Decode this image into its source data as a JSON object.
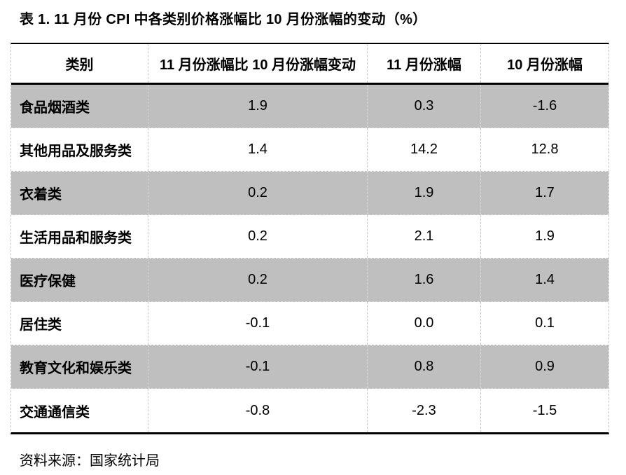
{
  "title": "表 1. 11 月份 CPI 中各类别价格涨幅比 10 月份涨幅的变动（%）",
  "table": {
    "headers": [
      "类别",
      "11 月份涨幅比 10 月份涨幅变动",
      "11 月份涨幅",
      "10 月份涨幅"
    ],
    "rows": [
      {
        "category": "食品烟酒类",
        "change": "1.9",
        "nov": "0.3",
        "oct": "-1.6"
      },
      {
        "category": "其他用品及服务类",
        "change": "1.4",
        "nov": "14.2",
        "oct": "12.8"
      },
      {
        "category": "衣着类",
        "change": "0.2",
        "nov": "1.9",
        "oct": "1.7"
      },
      {
        "category": "生活用品和服务类",
        "change": "0.2",
        "nov": "2.1",
        "oct": "1.9"
      },
      {
        "category": "医疗保健",
        "change": "0.2",
        "nov": "1.6",
        "oct": "1.4"
      },
      {
        "category": "居住类",
        "change": "-0.1",
        "nov": "0.0",
        "oct": "0.1"
      },
      {
        "category": "教育文化和娱乐类",
        "change": "-0.1",
        "nov": "0.8",
        "oct": "0.9"
      },
      {
        "category": "交通通信类",
        "change": "-0.8",
        "nov": "-2.3",
        "oct": "-1.5"
      }
    ]
  },
  "footer": {
    "source": "资料来源：国家统计局"
  },
  "colors": {
    "shaded_row": "#bfbfbf",
    "grid_dash": "#c6c6c6",
    "rule": "#000000",
    "text": "#000000",
    "background": "#ffffff"
  },
  "chart_data": {
    "type": "table",
    "title": "表 1. 11 月份 CPI 中各类别价格涨幅比 10 月份涨幅的变动（%）",
    "columns": [
      "类别",
      "11 月份涨幅比 10 月份涨幅变动",
      "11 月份涨幅",
      "10 月份涨幅"
    ],
    "rows": [
      [
        "食品烟酒类",
        1.9,
        0.3,
        -1.6
      ],
      [
        "其他用品及服务类",
        1.4,
        14.2,
        12.8
      ],
      [
        "衣着类",
        0.2,
        1.9,
        1.7
      ],
      [
        "生活用品和服务类",
        0.2,
        2.1,
        1.9
      ],
      [
        "医疗保健",
        0.2,
        1.6,
        1.4
      ],
      [
        "居住类",
        -0.1,
        0.0,
        0.1
      ],
      [
        "教育文化和娱乐类",
        -0.1,
        0.8,
        0.9
      ],
      [
        "交通通信类",
        -0.8,
        -2.3,
        -1.5
      ]
    ],
    "source": "国家统计局"
  }
}
